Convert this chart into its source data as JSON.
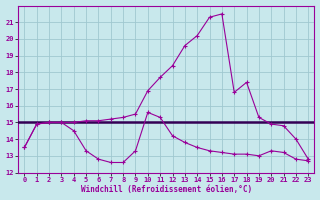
{
  "xlabel": "Windchill (Refroidissement éolien,°C)",
  "xlim": [
    -0.5,
    23.5
  ],
  "ylim": [
    12,
    22
  ],
  "yticks": [
    12,
    13,
    14,
    15,
    16,
    17,
    18,
    19,
    20,
    21
  ],
  "xticks": [
    0,
    1,
    2,
    3,
    4,
    5,
    6,
    7,
    8,
    9,
    10,
    11,
    12,
    13,
    14,
    15,
    16,
    17,
    18,
    19,
    20,
    21,
    22,
    23
  ],
  "bg_color": "#c8e8ec",
  "grid_color": "#a0c8d0",
  "line_color": "#990099",
  "flat_line_color": "#330055",
  "line1_x": [
    0,
    1,
    2,
    3,
    4,
    5,
    6,
    7,
    8,
    9,
    10,
    11,
    12,
    13,
    14,
    15,
    16,
    17,
    18,
    19,
    20,
    21,
    22,
    23
  ],
  "line1_y": [
    13.5,
    14.9,
    15.0,
    15.0,
    14.5,
    13.3,
    12.8,
    12.6,
    12.6,
    13.3,
    15.6,
    15.3,
    14.2,
    13.8,
    13.5,
    13.3,
    13.2,
    13.1,
    13.1,
    13.0,
    13.3,
    13.2,
    12.8,
    12.7
  ],
  "line2_x": [
    0,
    1,
    2,
    3,
    4,
    5,
    6,
    7,
    8,
    9,
    10,
    11,
    12,
    13,
    14,
    15,
    16,
    17,
    18,
    19,
    20,
    21,
    22,
    23
  ],
  "line2_y": [
    13.5,
    14.9,
    15.0,
    15.0,
    15.0,
    15.1,
    15.1,
    15.2,
    15.3,
    15.5,
    16.9,
    17.7,
    18.4,
    19.6,
    20.2,
    21.3,
    21.5,
    16.8,
    17.4,
    15.3,
    14.9,
    14.8,
    14.0,
    12.8
  ],
  "flat_y": 15.0
}
